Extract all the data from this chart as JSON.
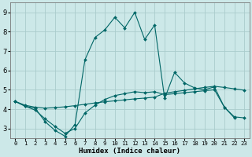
{
  "xlabel": "Humidex (Indice chaleur)",
  "bg_color": "#cce8e8",
  "grid_color": "#aacccc",
  "line_color": "#006666",
  "xlim": [
    -0.5,
    23.5
  ],
  "ylim": [
    2.5,
    9.5
  ],
  "xticks": [
    0,
    1,
    2,
    3,
    4,
    5,
    6,
    7,
    8,
    9,
    10,
    11,
    12,
    13,
    14,
    15,
    16,
    17,
    18,
    19,
    20,
    21,
    22,
    23
  ],
  "yticks": [
    3,
    4,
    5,
    6,
    7,
    8,
    9
  ],
  "series1_x": [
    0,
    1,
    2,
    3,
    4,
    5,
    6,
    7,
    8,
    9,
    10,
    11,
    12,
    13,
    14,
    15,
    16,
    17,
    18,
    19,
    20,
    21,
    22
  ],
  "series1_y": [
    4.4,
    4.15,
    4.05,
    3.35,
    2.9,
    2.6,
    3.2,
    6.55,
    7.7,
    8.1,
    8.75,
    8.2,
    9.0,
    7.6,
    8.35,
    4.55,
    5.9,
    5.35,
    5.1,
    5.0,
    5.15,
    4.1,
    3.55
  ],
  "series2_x": [
    0,
    1,
    2,
    3,
    4,
    5,
    6,
    7,
    8,
    9,
    10,
    11,
    12,
    13,
    14,
    15,
    16,
    17,
    18,
    19,
    20,
    21,
    22,
    23
  ],
  "series2_y": [
    4.4,
    4.2,
    4.1,
    4.05,
    4.08,
    4.12,
    4.18,
    4.25,
    4.32,
    4.38,
    4.43,
    4.48,
    4.53,
    4.57,
    4.62,
    4.82,
    4.9,
    4.97,
    5.05,
    5.12,
    5.18,
    5.12,
    5.05,
    4.98
  ],
  "series3_x": [
    0,
    1,
    2,
    3,
    4,
    5,
    6,
    7,
    8,
    9,
    10,
    11,
    12,
    13,
    14,
    15,
    16,
    17,
    18,
    19,
    20,
    21,
    22,
    23
  ],
  "series3_y": [
    4.4,
    4.15,
    3.95,
    3.5,
    3.1,
    2.75,
    3.0,
    3.8,
    4.2,
    4.5,
    4.7,
    4.8,
    4.9,
    4.85,
    4.9,
    4.75,
    4.8,
    4.85,
    4.9,
    4.95,
    5.0,
    4.1,
    3.6,
    3.55
  ]
}
